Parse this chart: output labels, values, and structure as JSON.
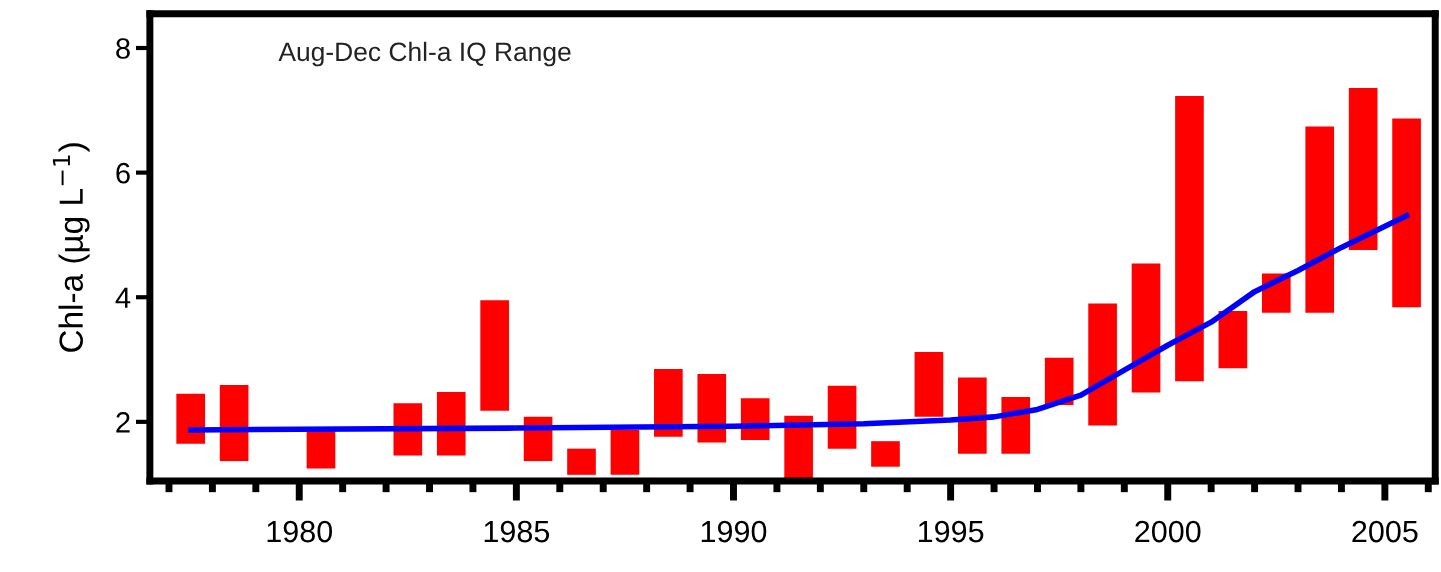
{
  "chart_data": {
    "type": "bar",
    "title": "Aug-Dec Chl-a IQ Range",
    "ylabel": "Chl-a (µg L$^{−1}$)",
    "x": [
      1977.5,
      1978.5,
      1979.5,
      1980.5,
      1981.5,
      1982.5,
      1983.5,
      1984.5,
      1985.5,
      1986.5,
      1987.5,
      1988.5,
      1989.5,
      1990.5,
      1991.5,
      1992.5,
      1993.5,
      1994.5,
      1995.5,
      1996.5,
      1997.5,
      1998.5,
      1999.5,
      2000.5,
      2001.5,
      2002.5,
      2003.5,
      2004.5,
      2005.5
    ],
    "series": [
      {
        "color": "#ff0000",
        "values": [
          0.8,
          1.22,
          null,
          0.6,
          null,
          0.84,
          1.02,
          1.77,
          0.71,
          0.42,
          0.72,
          1.09,
          1.1,
          0.67,
          1.05,
          1.01,
          0.41,
          1.04,
          1.22,
          0.91,
          0.76,
          1.96,
          2.07,
          4.58,
          0.92,
          0.63,
          2.99,
          2.6,
          3.03
        ],
        "base": [
          1.65,
          1.37,
          null,
          1.25,
          null,
          1.46,
          1.46,
          2.18,
          1.37,
          1.15,
          1.15,
          1.76,
          1.67,
          1.71,
          1.05,
          1.57,
          1.28,
          2.08,
          1.49,
          1.49,
          2.27,
          1.94,
          2.47,
          2.65,
          2.86,
          3.75,
          3.75,
          4.76,
          3.84
        ]
      },
      {
        "type": "line",
        "color": "#0000ff",
        "x": [
          1977.5,
          1980,
          1985,
          1990,
          1993,
          1995,
          1996,
          1997,
          1998,
          1999,
          2000,
          2001,
          2002,
          2003,
          2004,
          2005.5
        ],
        "values": [
          1.87,
          1.88,
          1.9,
          1.93,
          1.97,
          2.03,
          2.08,
          2.2,
          2.43,
          2.83,
          3.23,
          3.6,
          4.09,
          4.43,
          4.8,
          5.31
        ]
      }
    ],
    "xlim": [
      1976.56,
      2006.16
    ],
    "xticks": [
      {
        "value": 1977,
        "label": null
      },
      {
        "value": 1978,
        "label": null
      },
      {
        "value": 1979,
        "label": null
      },
      1980,
      {
        "value": 1981,
        "label": null
      },
      {
        "value": 1982,
        "label": null
      },
      {
        "value": 1983,
        "label": null
      },
      {
        "value": 1984,
        "label": null
      },
      1985,
      {
        "value": 1986,
        "label": null
      },
      {
        "value": 1987,
        "label": null
      },
      {
        "value": 1988,
        "label": null
      },
      {
        "value": 1989,
        "label": null
      },
      1990,
      {
        "value": 1991,
        "label": null
      },
      {
        "value": 1992,
        "label": null
      },
      {
        "value": 1993,
        "label": null
      },
      {
        "value": 1994,
        "label": null
      },
      1995,
      {
        "value": 1996,
        "label": null
      },
      {
        "value": 1997,
        "label": null
      },
      {
        "value": 1998,
        "label": null
      },
      {
        "value": 1999,
        "label": null
      },
      2000,
      {
        "value": 2001,
        "label": null
      },
      {
        "value": 2002,
        "label": null
      },
      {
        "value": 2003,
        "label": null
      },
      {
        "value": 2004,
        "label": null
      },
      2005,
      {
        "value": 2006,
        "label": null
      }
    ],
    "ylim": [
      1.05,
      8.55
    ],
    "yticks": [
      2,
      4,
      6,
      8
    ],
    "grid": false,
    "legend": false
  }
}
